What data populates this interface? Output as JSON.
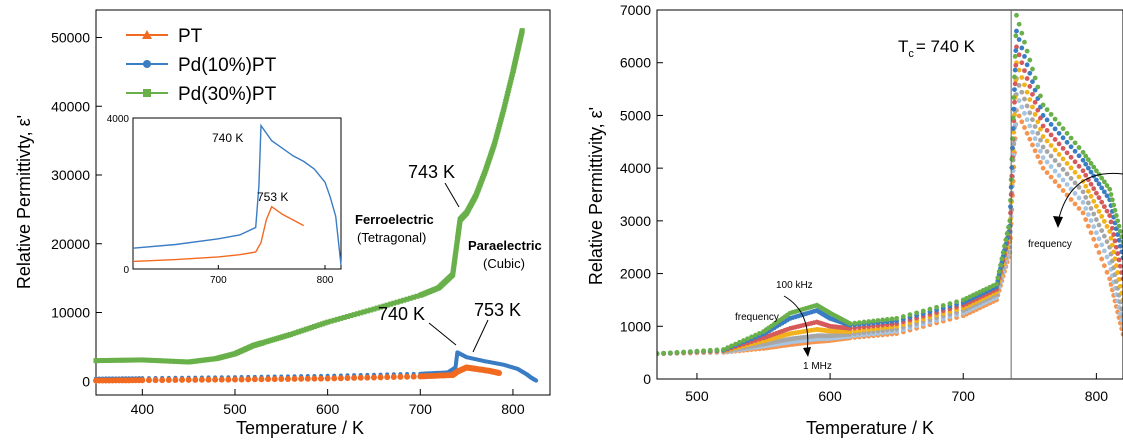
{
  "colors": {
    "PT": "#f26a21",
    "Pd10": "#3a7dc4",
    "Pd30": "#69b04a"
  },
  "chart_data": [
    {
      "type": "line",
      "xlabel": "Temperature   / K",
      "ylabel": "Relative Permittivty, ε'",
      "xlim": [
        350,
        840
      ],
      "ylim": [
        -2000,
        54000
      ],
      "xticks": [
        400,
        500,
        600,
        700,
        800
      ],
      "yticks": [
        0,
        10000,
        20000,
        30000,
        40000,
        50000
      ],
      "legend": {
        "placement": "top-left",
        "entries": [
          "PT",
          "Pd(10%)PT",
          "Pd(30%)PT"
        ]
      },
      "series": [
        {
          "name": "PT",
          "x": [
            350,
            400,
            500,
            600,
            700,
            735,
            740,
            750,
            760,
            775,
            785
          ],
          "y": [
            100,
            150,
            250,
            400,
            700,
            900,
            1400,
            2000,
            1800,
            1500,
            1200
          ]
        },
        {
          "name": "Pd(10%)PT",
          "x": [
            350,
            400,
            500,
            600,
            700,
            730,
            738,
            740,
            750,
            770,
            790,
            805,
            815,
            820,
            825
          ],
          "y": [
            400,
            450,
            600,
            800,
            1100,
            1300,
            2000,
            4200,
            3500,
            2900,
            2400,
            1800,
            1000,
            500,
            100
          ]
        },
        {
          "name": "Pd(30%)PT",
          "x": [
            350,
            400,
            450,
            480,
            500,
            520,
            530,
            560,
            600,
            650,
            700,
            720,
            735,
            740,
            743,
            750,
            760,
            770,
            780,
            790,
            800,
            805,
            810
          ],
          "y": [
            3000,
            3100,
            2800,
            3300,
            4000,
            5200,
            5600,
            6800,
            8600,
            10500,
            12500,
            13600,
            15500,
            20500,
            23500,
            24500,
            27000,
            30500,
            34500,
            39500,
            45000,
            48000,
            51000
          ]
        }
      ],
      "annotations": {
        "t743": "743 K",
        "t740": "740 K",
        "t753": "753 K",
        "ferro": "Ferroelectric",
        "ferro_sub": "(Tetragonal)",
        "para": "Paraelectric",
        "para_sub": "(Cubic)"
      },
      "inset": {
        "type": "line",
        "xlim": [
          620,
          815
        ],
        "ylim": [
          0,
          4000
        ],
        "xticks": [
          700,
          800
        ],
        "yticks": [
          0,
          4000
        ],
        "t740": "740 K",
        "t753": "753 K",
        "series": [
          {
            "name": "Pd(10%)PT",
            "x": [
              620,
              660,
              700,
              720,
              735,
              738,
              740,
              750,
              760,
              770,
              780,
              790,
              800,
              805,
              810,
              815
            ],
            "y": [
              550,
              650,
              800,
              900,
              1100,
              2200,
              3800,
              3400,
              3200,
              3000,
              2850,
              2650,
              2300,
              1900,
              1400,
              100
            ]
          },
          {
            "name": "PT",
            "x": [
              620,
              660,
              700,
              720,
              735,
              740,
              745,
              750,
              760,
              770,
              780
            ],
            "y": [
              200,
              250,
              320,
              380,
              450,
              700,
              1300,
              1650,
              1450,
              1300,
              1150
            ]
          }
        ]
      }
    },
    {
      "type": "scatter",
      "xlabel": "Temperature   / K",
      "ylabel": "Relative Permittivity, ε'",
      "xlim": [
        470,
        820
      ],
      "ylim": [
        0,
        7000
      ],
      "xticks": [
        500,
        600,
        700,
        800
      ],
      "yticks": [
        0,
        1000,
        2000,
        3000,
        4000,
        5000,
        6000,
        7000
      ],
      "tc_x": 736,
      "annotations": {
        "tc_main": "T",
        "tc_sub": "c",
        "tc_rest": "= 740 K",
        "f100k": "100 kHz",
        "f1M": "1 MHz",
        "freq1": "frequency",
        "freq2": "frequency"
      },
      "series": [
        {
          "name": "",
          "color": "#69b04a",
          "x": [
            470,
            520,
            550,
            570,
            590,
            600,
            615,
            650,
            700,
            725,
            735,
            740,
            760,
            790,
            810,
            820
          ],
          "y": [
            480,
            560,
            900,
            1250,
            1400,
            1250,
            1050,
            1150,
            1500,
            1800,
            3000,
            6900,
            5200,
            4300,
            3600,
            2600
          ]
        },
        {
          "name": "",
          "color": "#3a7dc4",
          "x": [
            470,
            520,
            550,
            570,
            590,
            600,
            615,
            650,
            700,
            725,
            735,
            740,
            760,
            790,
            810,
            820
          ],
          "y": [
            480,
            550,
            850,
            1150,
            1300,
            1150,
            1020,
            1100,
            1450,
            1750,
            2900,
            6600,
            5000,
            4150,
            3400,
            2300
          ]
        },
        {
          "name": "",
          "color": "#d65a5a",
          "x": [
            470,
            520,
            550,
            570,
            590,
            600,
            615,
            650,
            700,
            725,
            735,
            740,
            760,
            790,
            810,
            820
          ],
          "y": [
            480,
            540,
            780,
            960,
            1080,
            1000,
            960,
            1050,
            1400,
            1700,
            2800,
            6300,
            4800,
            3950,
            3100,
            1900
          ]
        },
        {
          "name": "",
          "color": "#f2b21b",
          "x": [
            470,
            520,
            550,
            570,
            590,
            600,
            615,
            650,
            700,
            725,
            735,
            740,
            760,
            790,
            810,
            820
          ],
          "y": [
            480,
            530,
            720,
            860,
            940,
            910,
            900,
            1000,
            1350,
            1650,
            2700,
            6000,
            4600,
            3750,
            2800,
            1500
          ]
        },
        {
          "name": "",
          "color": "#a6a6a6",
          "x": [
            470,
            520,
            550,
            570,
            590,
            600,
            615,
            650,
            700,
            725,
            735,
            740,
            760,
            790,
            810,
            820
          ],
          "y": [
            480,
            520,
            660,
            760,
            820,
            820,
            850,
            950,
            1300,
            1600,
            2600,
            5700,
            4400,
            3550,
            2500,
            1200
          ]
        },
        {
          "name": "",
          "color": "#a7c4e0",
          "x": [
            470,
            520,
            550,
            570,
            590,
            600,
            615,
            650,
            700,
            725,
            735,
            740,
            760,
            790,
            810,
            820
          ],
          "y": [
            480,
            510,
            620,
            700,
            760,
            770,
            810,
            900,
            1250,
            1550,
            2500,
            5400,
            4200,
            3350,
            2200,
            1000
          ]
        },
        {
          "name": "",
          "color": "#f5954f",
          "x": [
            470,
            520,
            550,
            570,
            590,
            600,
            615,
            650,
            700,
            725,
            735,
            740,
            760,
            790,
            810,
            820
          ],
          "y": [
            480,
            505,
            580,
            650,
            710,
            730,
            780,
            860,
            1200,
            1500,
            2400,
            5100,
            4000,
            3150,
            1900,
            850
          ]
        }
      ]
    }
  ]
}
